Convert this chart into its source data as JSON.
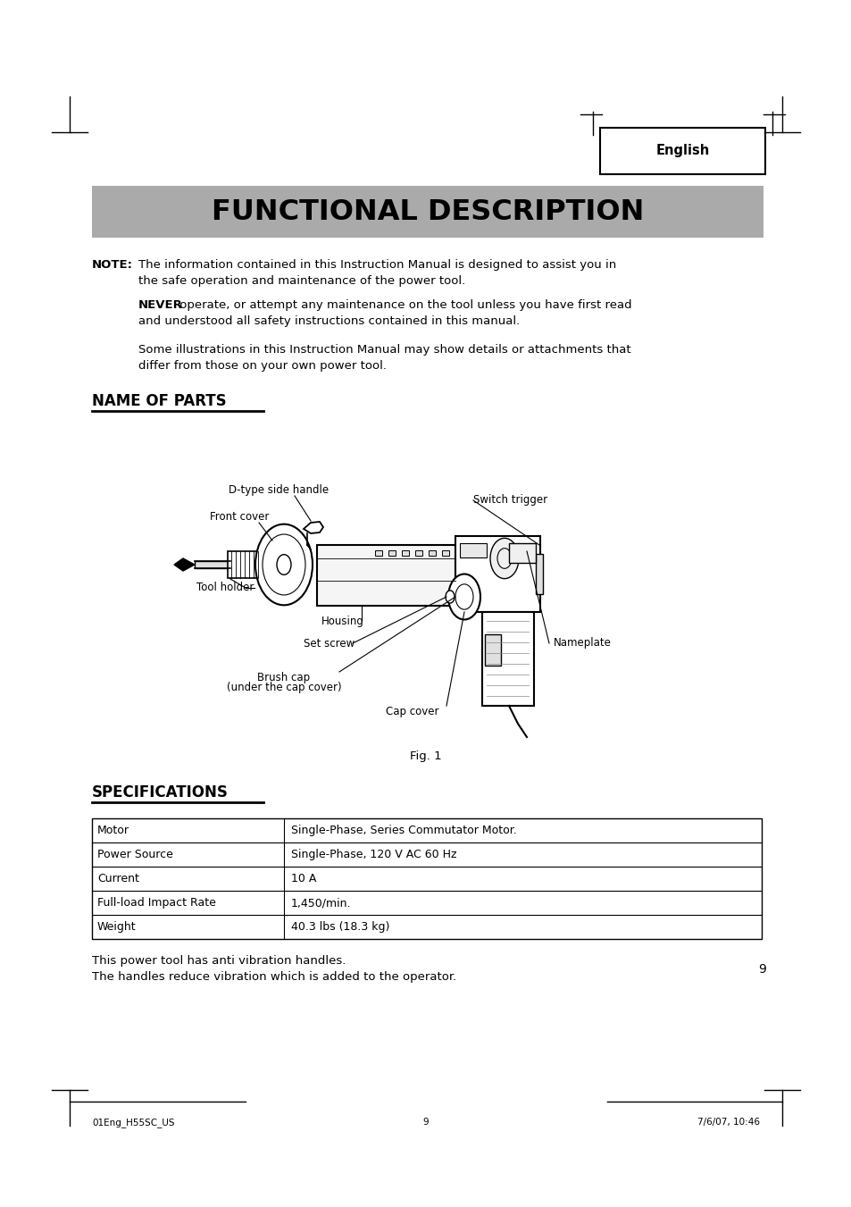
{
  "bg_color": "#ffffff",
  "title": "FUNCTIONAL DESCRIPTION",
  "title_bg": "#aaaaaa",
  "english_label": "English",
  "note_line1": "The information contained in this Instruction Manual is designed to assist you in",
  "note_line2": "the safe operation and maintenance of the power tool.",
  "never_line1": " operate, or attempt any maintenance on the tool unless you have first read",
  "never_line2": "and understood all safety instructions contained in this manual.",
  "some_line1": "Some illustrations in this Instruction Manual may show details or attachments that",
  "some_line2": "differ from those on your own power tool.",
  "name_of_parts": "NAME OF PARTS",
  "fig_caption": "Fig. 1",
  "specifications_title": "SPECIFICATIONS",
  "spec_rows": [
    [
      "Motor",
      "Single-Phase, Series Commutator Motor."
    ],
    [
      "Power Source",
      "Single-Phase, 120 V AC 60 Hz"
    ],
    [
      "Current",
      "10 A"
    ],
    [
      "Full-load Impact Rate",
      "1,450/min."
    ],
    [
      "Weight",
      "40.3 lbs (18.3 kg)"
    ]
  ],
  "footnote1": "This power tool has anti vibration handles.",
  "footnote2": "The handles reduce vibration which is added to the operator.",
  "page_number": "9",
  "footer_left": "01Eng_H55SC_US",
  "footer_center": "9",
  "footer_right": "7/6/07, 10:46"
}
